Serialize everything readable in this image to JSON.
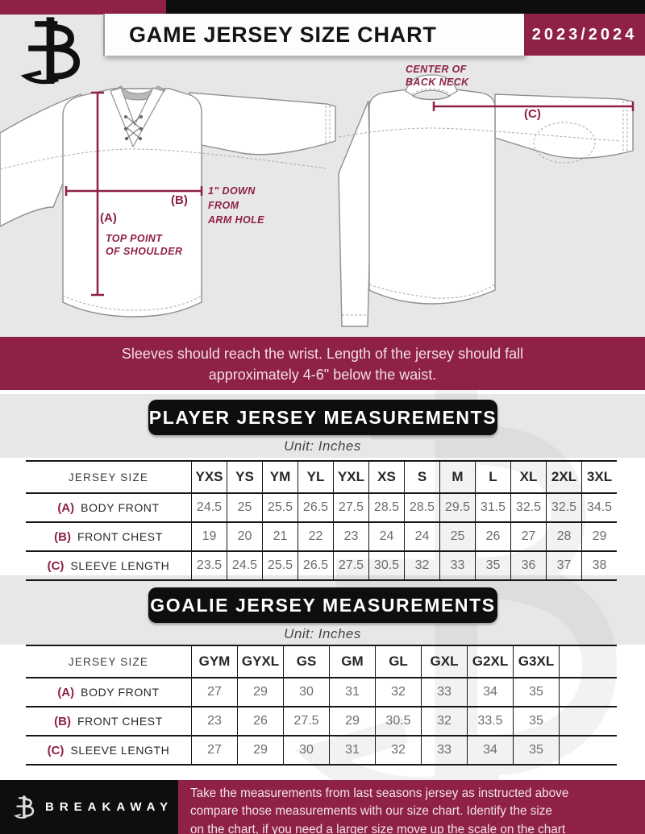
{
  "colors": {
    "maroon": "#8E2144",
    "black": "#0E0E0E",
    "background_gray": "#E8E7E7"
  },
  "header": {
    "title": "GAME JERSEY SIZE CHART",
    "season": "2023/2024"
  },
  "diagram": {
    "front_annotations": {
      "a_label": "(A)",
      "a_note_line1": "TOP POINT",
      "a_note_line2": "OF SHOULDER",
      "b_label": "(B)",
      "b_note_line1": "1\" DOWN",
      "b_note_line2": "FROM",
      "b_note_line3": "ARM HOLE"
    },
    "back_annotations": {
      "c_label": "(C)",
      "neck_note_line1": "CENTER OF",
      "neck_note_line2": "BACK NECK"
    }
  },
  "notice_banner": {
    "line1": "Sleeves should reach the wrist. Length of the jersey should fall",
    "line2": "approximately 4-6\" below the waist."
  },
  "player_section": {
    "title": "PLAYER JERSEY MEASUREMENTS",
    "unit": "Unit: Inches",
    "table": {
      "size_header": "JERSEY SIZE",
      "columns": [
        "YXS",
        "YS",
        "YM",
        "YL",
        "YXL",
        "XS",
        "S",
        "M",
        "L",
        "XL",
        "2XL",
        "3XL"
      ],
      "rows": [
        {
          "key": "(A)",
          "label": "BODY FRONT",
          "values": [
            "24.5",
            "25",
            "25.5",
            "26.5",
            "27.5",
            "28.5",
            "28.5",
            "29.5",
            "31.5",
            "32.5",
            "32.5",
            "34.5"
          ]
        },
        {
          "key": "(B)",
          "label": "FRONT CHEST",
          "values": [
            "19",
            "20",
            "21",
            "22",
            "23",
            "24",
            "24",
            "25",
            "26",
            "27",
            "28",
            "29"
          ]
        },
        {
          "key": "(C)",
          "label": "SLEEVE LENGTH",
          "values": [
            "23.5",
            "24.5",
            "25.5",
            "26.5",
            "27.5",
            "30.5",
            "32",
            "33",
            "35",
            "36",
            "37",
            "38"
          ]
        }
      ],
      "trailing_empty": false
    }
  },
  "goalie_section": {
    "title": "GOALIE JERSEY MEASUREMENTS",
    "unit": "Unit: Inches",
    "table": {
      "size_header": "JERSEY SIZE",
      "columns": [
        "GYM",
        "GYXL",
        "GS",
        "GM",
        "GL",
        "GXL",
        "G2XL",
        "G3XL"
      ],
      "rows": [
        {
          "key": "(A)",
          "label": "BODY FRONT",
          "values": [
            "27",
            "29",
            "30",
            "31",
            "32",
            "33",
            "34",
            "35"
          ]
        },
        {
          "key": "(B)",
          "label": "FRONT CHEST",
          "values": [
            "23",
            "26",
            "27.5",
            "29",
            "30.5",
            "32",
            "33.5",
            "35"
          ]
        },
        {
          "key": "(C)",
          "label": "SLEEVE LENGTH",
          "values": [
            "27",
            "29",
            "30",
            "31",
            "32",
            "33",
            "34",
            "35"
          ]
        }
      ],
      "trailing_empty": true
    }
  },
  "footer": {
    "brand": "BREAKAWAY",
    "note_line1": "Take the measurements from last seasons jersey as instructed above",
    "note_line2": "compare those measurements  with our size chart. Identify the size",
    "note_line3": "on the chart, if you need a larger size move up the scale on the chart"
  }
}
